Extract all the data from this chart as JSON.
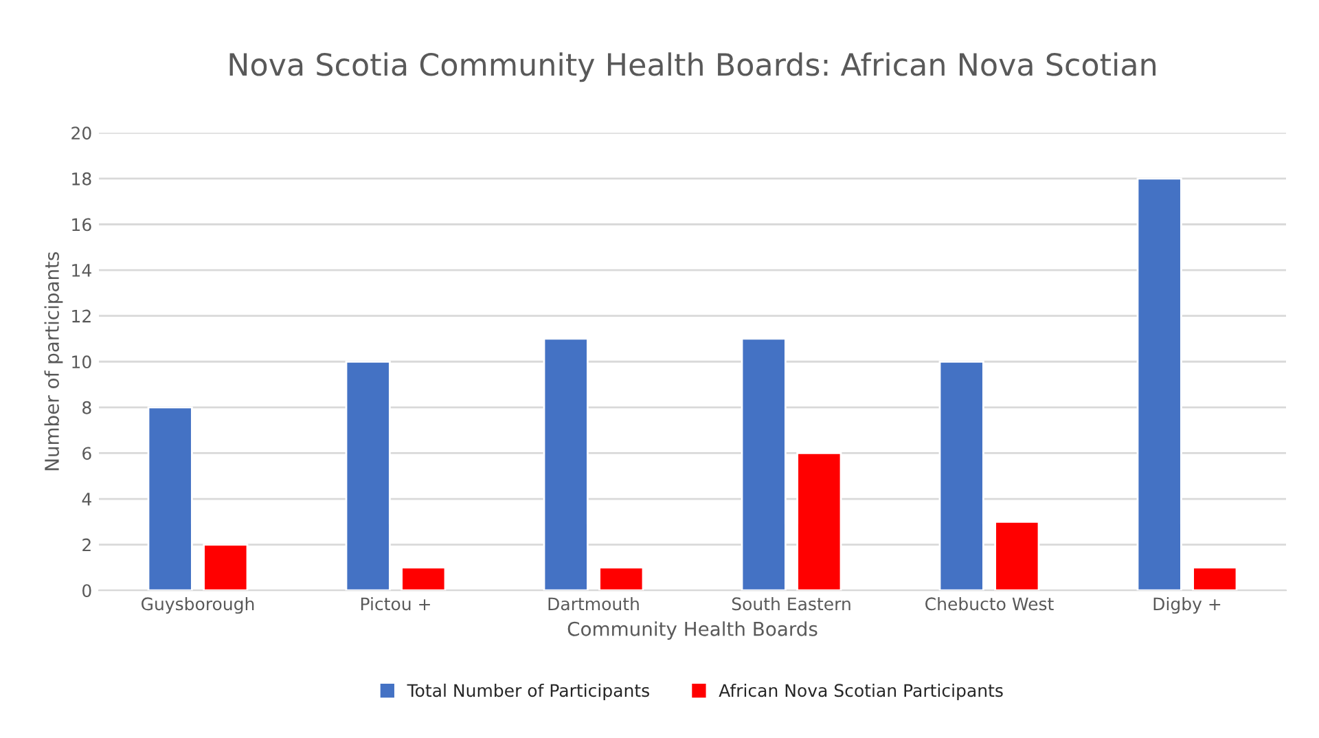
{
  "chart_data": {
    "type": "bar",
    "title": "Nova Scotia Community Health Boards: African Nova Scotian",
    "xlabel": "Community Health Boards",
    "ylabel": "Number of participants",
    "categories": [
      "Guysborough",
      "Pictou +",
      "Dartmouth",
      "South Eastern",
      "Chebucto West",
      "Digby +"
    ],
    "series": [
      {
        "name": "Total Number of Participants",
        "color": "#4472c4",
        "values": [
          8,
          10,
          11,
          11,
          10,
          18
        ]
      },
      {
        "name": "African Nova Scotian Participants",
        "color": "#ff0000",
        "values": [
          2,
          1,
          1,
          6,
          3,
          1
        ]
      }
    ],
    "ylim": [
      0,
      20
    ],
    "yticks": [
      0,
      2,
      4,
      6,
      8,
      10,
      12,
      14,
      16,
      18,
      20
    ],
    "grid": "y",
    "legend": "bottom"
  }
}
